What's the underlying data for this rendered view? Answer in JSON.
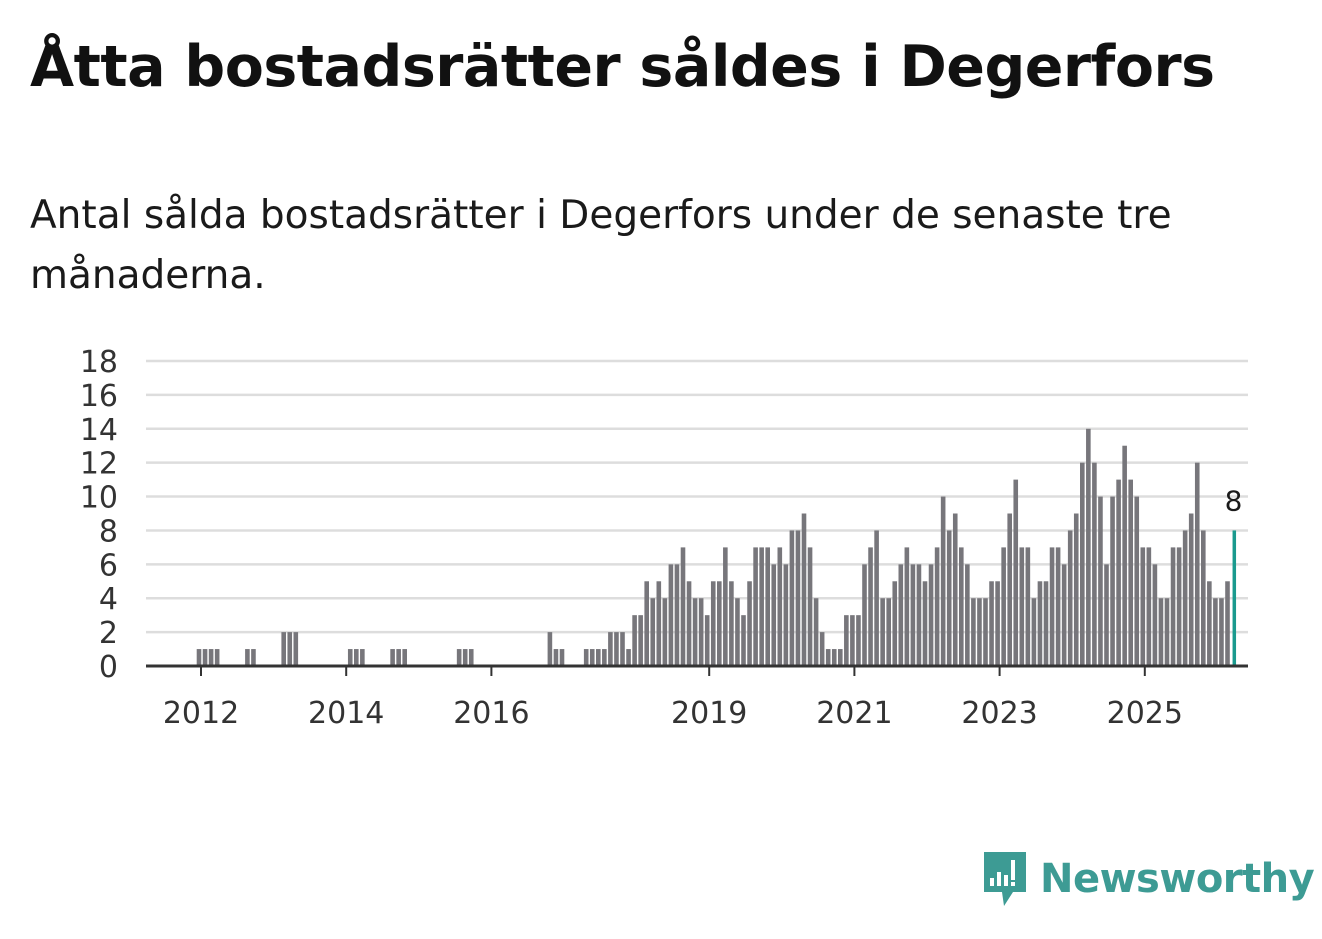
{
  "title": "Åtta bostadsrätter såldes i Degerfors",
  "subtitle": "Antal sålda bostadsrätter i Degerfors under de senaste tre månaderna.",
  "brand": {
    "name": "Newsworthy",
    "icon": "newsworthy-logo-icon",
    "color": "#3d9b94"
  },
  "chart_data": {
    "type": "bar",
    "title": "Åtta bostadsrätter såldes i Degerfors",
    "xlabel": "",
    "ylabel": "",
    "ylim": [
      0,
      18
    ],
    "yticks": [
      0,
      2,
      4,
      6,
      8,
      10,
      12,
      14,
      16,
      18
    ],
    "x_tick_labels": [
      "2012",
      "2014",
      "2016",
      "2019",
      "2021",
      "2023",
      "2025"
    ],
    "x_tick_years": [
      2012,
      2014,
      2016,
      2019,
      2021,
      2023,
      2025
    ],
    "start": "2011-09",
    "frequency": "monthly",
    "colors": {
      "bar": "#77767b",
      "highlight": "#1a9a8e",
      "grid": "#dddddd",
      "axis": "#333333"
    },
    "highlight_label": "8",
    "values": [
      0,
      0,
      0,
      0,
      1,
      1,
      1,
      1,
      0,
      0,
      0,
      0,
      1,
      1,
      0,
      0,
      0,
      0,
      2,
      2,
      2,
      0,
      0,
      0,
      0,
      0,
      0,
      0,
      0,
      1,
      1,
      1,
      0,
      0,
      0,
      0,
      1,
      1,
      1,
      0,
      0,
      0,
      0,
      0,
      0,
      0,
      0,
      1,
      1,
      1,
      0,
      0,
      0,
      0,
      0,
      0,
      0,
      0,
      0,
      0,
      0,
      0,
      2,
      1,
      1,
      0,
      0,
      0,
      1,
      1,
      1,
      1,
      2,
      2,
      2,
      1,
      3,
      3,
      5,
      4,
      5,
      4,
      6,
      6,
      7,
      5,
      4,
      4,
      3,
      5,
      5,
      7,
      5,
      4,
      3,
      5,
      7,
      7,
      7,
      6,
      7,
      6,
      8,
      8,
      9,
      7,
      4,
      2,
      1,
      1,
      1,
      3,
      3,
      3,
      6,
      7,
      8,
      4,
      4,
      5,
      6,
      7,
      6,
      6,
      5,
      6,
      7,
      10,
      8,
      9,
      7,
      6,
      4,
      4,
      4,
      5,
      5,
      7,
      9,
      11,
      7,
      7,
      4,
      5,
      5,
      7,
      7,
      6,
      8,
      9,
      12,
      14,
      12,
      10,
      6,
      10,
      11,
      13,
      11,
      10,
      7,
      7,
      6,
      4,
      4,
      7,
      7,
      8,
      9,
      12,
      8,
      5,
      4,
      4,
      5,
      8
    ]
  }
}
